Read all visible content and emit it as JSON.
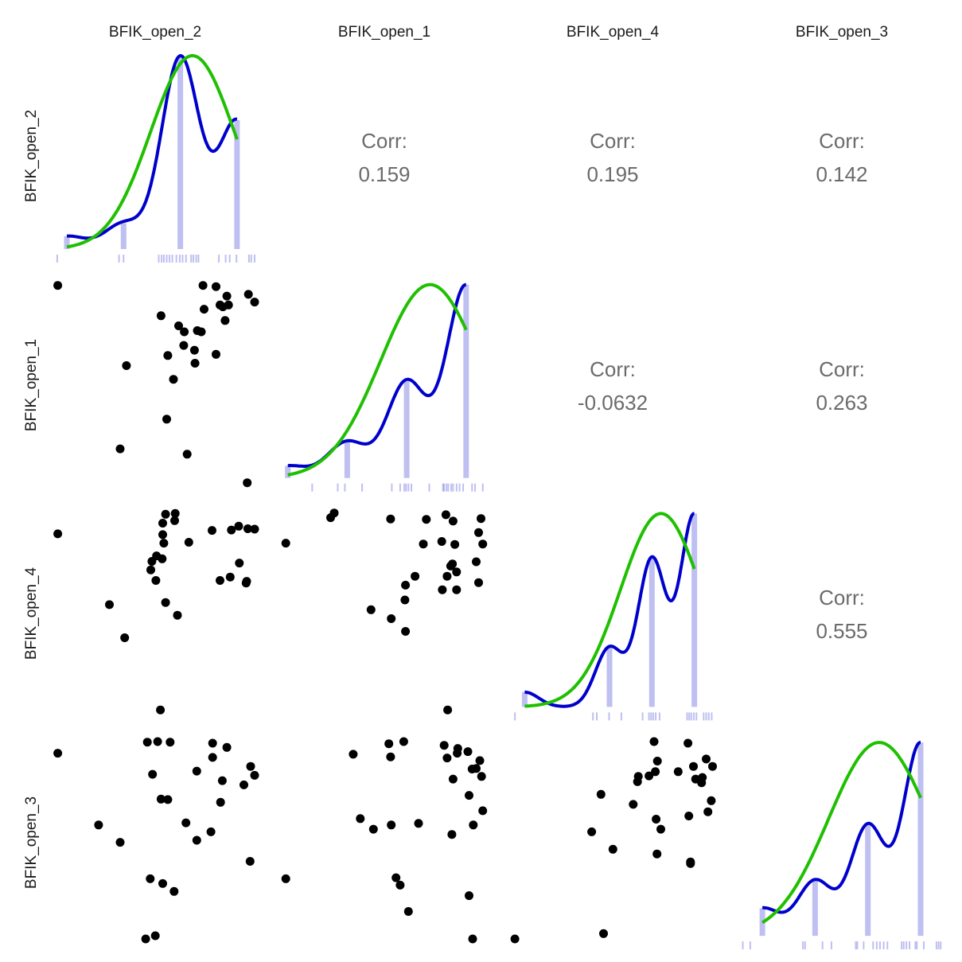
{
  "colors": {
    "density": "#0000CC",
    "normal_fit": "#1EC000",
    "bars": "#0000CC",
    "points": "#000000",
    "corr_text": "#6b6b6b"
  },
  "chart_data": {
    "type": "scatter-matrix",
    "variables": [
      "BFIK_open_2",
      "BFIK_open_1",
      "BFIK_open_4",
      "BFIK_open_3"
    ],
    "corr_label": "Corr:",
    "correlations": [
      {
        "row": 0,
        "col": 1,
        "value": "0.159"
      },
      {
        "row": 0,
        "col": 2,
        "value": "0.195"
      },
      {
        "row": 0,
        "col": 3,
        "value": "0.142"
      },
      {
        "row": 1,
        "col": 2,
        "value": "-0.0632"
      },
      {
        "row": 1,
        "col": 3,
        "value": "0.263"
      },
      {
        "row": 2,
        "col": 3,
        "value": "0.555"
      }
    ],
    "diagonal": [
      {
        "bar_values": [
          1,
          2,
          3,
          4
        ],
        "counts": [
          1,
          2,
          15,
          10
        ],
        "rug": [
          0.83,
          1.92,
          2.0,
          2.62,
          2.67,
          2.71,
          2.76,
          2.81,
          2.86,
          2.93,
          2.99,
          3.04,
          3.1,
          3.19,
          3.23,
          3.28,
          3.32,
          3.68,
          3.8,
          3.87,
          3.99,
          4.21,
          4.25,
          4.31
        ]
      },
      {
        "bar_values": [
          1,
          2,
          3,
          4
        ],
        "counts": [
          1,
          3,
          8,
          16
        ],
        "rug": [
          1.41,
          1.84,
          1.96,
          2.25,
          2.75,
          2.89,
          2.96,
          2.99,
          3.03,
          3.08,
          3.38,
          3.61,
          3.63,
          3.67,
          3.7,
          3.75,
          3.78,
          3.84,
          3.89,
          3.95,
          4.1,
          4.15,
          4.28
        ]
      },
      {
        "bar_values": [
          1,
          3,
          4,
          5
        ],
        "counts": [
          1,
          4,
          10,
          13
        ],
        "rug": [
          0.77,
          2.61,
          2.7,
          2.99,
          3.28,
          3.78,
          3.93,
          3.98,
          4.03,
          4.09,
          4.18,
          4.83,
          4.88,
          4.93,
          4.99,
          5.05,
          5.22,
          5.28,
          5.34,
          5.41
        ]
      },
      {
        "bar_values": [
          1,
          2,
          3,
          4
        ],
        "counts": [
          2,
          4,
          8,
          14
        ],
        "rug": [
          0.63,
          0.77,
          1.77,
          1.81,
          2.14,
          2.31,
          2.77,
          2.8,
          2.92,
          3.1,
          3.17,
          3.23,
          3.3,
          3.37,
          3.64,
          3.68,
          3.73,
          3.79,
          3.9,
          3.93,
          4.06,
          4.3,
          4.34,
          4.38
        ]
      }
    ],
    "scatter": [
      {
        "row": 1,
        "col": 0,
        "x": [
          0.84,
          3.4,
          3.63,
          3.82,
          4.2,
          4.31,
          3.7,
          3.85,
          3.75,
          3.42,
          2.66,
          3.79,
          2.97,
          3.07,
          3.3,
          3.37,
          3.06,
          3.25,
          2.78,
          3.63,
          2.05,
          3.26,
          2.88,
          2.76,
          1.94,
          3.12,
          4.18
        ],
        "y": [
          4.28,
          4.28,
          4.26,
          4.1,
          4.13,
          4.0,
          3.95,
          3.95,
          3.92,
          3.88,
          3.77,
          3.69,
          3.6,
          3.5,
          3.52,
          3.5,
          3.27,
          3.19,
          3.1,
          3.12,
          2.93,
          2.97,
          2.7,
          2.03,
          1.53,
          1.44,
          0.96
        ]
      },
      {
        "row": 2,
        "col": 0,
        "x": [
          0.84,
          2.74,
          2.91,
          2.9,
          2.69,
          2.69,
          2.71,
          3.15,
          3.56,
          3.9,
          4.03,
          4.19,
          4.31,
          4.86,
          2.58,
          2.68,
          2.5,
          2.48,
          2.57,
          4.04,
          3.88,
          3.7,
          4.16,
          4.17,
          1.75,
          2.74,
          2.95,
          2.02
        ],
        "y": [
          4.95,
          5.41,
          5.43,
          5.26,
          5.2,
          4.93,
          4.73,
          4.75,
          5.03,
          5.04,
          5.13,
          5.07,
          5.06,
          4.73,
          4.43,
          4.36,
          4.3,
          4.1,
          3.85,
          4.26,
          3.93,
          3.85,
          3.79,
          3.83,
          3.28,
          3.33,
          3.03,
          2.5
        ]
      },
      {
        "row": 2,
        "col": 1,
        "x": [
          1.78,
          1.72,
          2.73,
          3.33,
          3.66,
          3.78,
          4.25,
          4.21,
          3.28,
          3.59,
          3.81,
          4.28,
          4.17,
          3.77,
          3.74,
          3.84,
          3.68,
          3.14,
          2.98,
          3.6,
          3.84,
          4.21,
          2.97,
          2.4,
          2.74,
          2.98
        ],
        "y": [
          5.44,
          5.33,
          5.3,
          5.29,
          5.4,
          5.25,
          5.31,
          4.98,
          4.71,
          4.77,
          4.7,
          4.71,
          4.29,
          4.24,
          4.19,
          4.05,
          3.95,
          3.95,
          3.74,
          3.63,
          3.63,
          3.8,
          3.39,
          3.16,
          2.95,
          2.65
        ]
      },
      {
        "row": 3,
        "col": 0,
        "x": [
          2.65,
          2.42,
          2.6,
          2.82,
          3.57,
          3.82,
          0.84,
          3.57,
          2.51,
          3.29,
          4.24,
          4.31,
          3.74,
          4.12,
          2.66,
          2.78,
          3.71,
          1.56,
          3.1,
          3.54,
          3.29,
          1.94,
          4.23,
          4.86,
          2.47,
          2.69,
          2.89,
          2.56,
          2.39
        ],
        "y": [
          5.01,
          4.4,
          4.41,
          4.4,
          4.38,
          4.3,
          4.19,
          4.11,
          3.79,
          3.85,
          3.94,
          3.77,
          3.67,
          3.59,
          3.32,
          3.31,
          3.26,
          2.83,
          2.87,
          2.7,
          2.54,
          2.5,
          2.14,
          1.81,
          1.81,
          1.72,
          1.57,
          0.73,
          0.67
        ]
      },
      {
        "row": 3,
        "col": 1,
        "x": [
          3.69,
          2.7,
          2.95,
          2.1,
          2.73,
          3.63,
          3.86,
          3.85,
          4.03,
          3.68,
          4.23,
          4.1,
          4.17,
          4.26,
          3.78,
          4.05,
          4.28,
          2.22,
          2.44,
          2.74,
          3.2,
          4.12,
          3.76,
          2.82,
          2.89,
          4.05,
          3.03,
          4.11,
          4.82
        ],
        "y": [
          5.01,
          4.37,
          4.41,
          4.17,
          4.12,
          4.34,
          4.28,
          4.19,
          4.22,
          4.1,
          4.05,
          3.89,
          3.9,
          3.75,
          3.7,
          3.39,
          3.1,
          2.95,
          2.75,
          2.83,
          2.86,
          2.83,
          2.65,
          1.83,
          1.69,
          1.49,
          1.19,
          0.67,
          0.67
        ]
      },
      {
        "row": 3,
        "col": 2,
        "x": [
          4.05,
          4.85,
          4.13,
          5.28,
          5.43,
          4.98,
          4.62,
          4.08,
          3.93,
          3.68,
          3.66,
          5.03,
          5.19,
          5.17,
          2.8,
          3.56,
          5.4,
          5.32,
          4.87,
          4.1,
          4.21,
          2.58,
          3.08,
          4.12,
          4.91,
          4.91,
          2.86
        ],
        "y": [
          4.41,
          4.38,
          4.04,
          4.08,
          3.94,
          3.94,
          3.84,
          3.84,
          3.76,
          3.75,
          3.65,
          3.7,
          3.73,
          3.63,
          3.41,
          3.22,
          3.29,
          3.08,
          3.0,
          2.94,
          2.75,
          2.7,
          2.37,
          2.28,
          2.13,
          2.1,
          0.77
        ]
      }
    ]
  }
}
